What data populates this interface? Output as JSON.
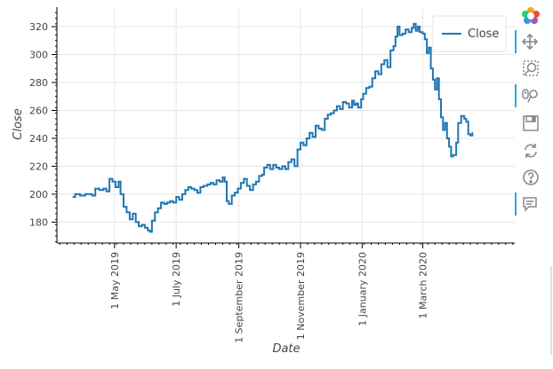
{
  "chart_data": {
    "type": "line",
    "xlabel": "Date",
    "ylabel": "Close",
    "x_range": [
      "2019-03-05",
      "2020-05-31"
    ],
    "ylim": [
      165,
      334
    ],
    "y_ticks": [
      180,
      200,
      220,
      240,
      260,
      280,
      300,
      320
    ],
    "x_ticks": [
      {
        "date": "2019-05-01",
        "label": "1 May 2019"
      },
      {
        "date": "2019-07-01",
        "label": "1 July 2019"
      },
      {
        "date": "2019-09-01",
        "label": "1 September 2019"
      },
      {
        "date": "2019-11-01",
        "label": "1 November 2019"
      },
      {
        "date": "2020-01-01",
        "label": "1 January 2020"
      },
      {
        "date": "2020-03-01",
        "label": "1 March 2020"
      }
    ],
    "grid": true,
    "legend": {
      "position": "top-right",
      "entries": [
        "Close"
      ]
    },
    "series": [
      {
        "name": "Close",
        "color": "#1f77b4",
        "points": [
          [
            "2019-03-21",
            198
          ],
          [
            "2019-03-23",
            200
          ],
          [
            "2019-03-28",
            199
          ],
          [
            "2019-04-02",
            200
          ],
          [
            "2019-04-06",
            200
          ],
          [
            "2019-04-09",
            199
          ],
          [
            "2019-04-12",
            204
          ],
          [
            "2019-04-16",
            203
          ],
          [
            "2019-04-20",
            204
          ],
          [
            "2019-04-23",
            202
          ],
          [
            "2019-04-26",
            211
          ],
          [
            "2019-04-29",
            209
          ],
          [
            "2019-05-02",
            205
          ],
          [
            "2019-05-05",
            209
          ],
          [
            "2019-05-07",
            200
          ],
          [
            "2019-05-10",
            191
          ],
          [
            "2019-05-13",
            187
          ],
          [
            "2019-05-16",
            182
          ],
          [
            "2019-05-19",
            186
          ],
          [
            "2019-05-22",
            180
          ],
          [
            "2019-05-25",
            177
          ],
          [
            "2019-05-28",
            178
          ],
          [
            "2019-05-31",
            176
          ],
          [
            "2019-06-03",
            174
          ],
          [
            "2019-06-05",
            173
          ],
          [
            "2019-06-07",
            181
          ],
          [
            "2019-06-10",
            187
          ],
          [
            "2019-06-13",
            190
          ],
          [
            "2019-06-16",
            194
          ],
          [
            "2019-06-19",
            193
          ],
          [
            "2019-06-22",
            194
          ],
          [
            "2019-06-25",
            195
          ],
          [
            "2019-06-28",
            194
          ],
          [
            "2019-07-01",
            198
          ],
          [
            "2019-07-04",
            196
          ],
          [
            "2019-07-07",
            200
          ],
          [
            "2019-07-10",
            203
          ],
          [
            "2019-07-13",
            205
          ],
          [
            "2019-07-16",
            204
          ],
          [
            "2019-07-19",
            203
          ],
          [
            "2019-07-22",
            201
          ],
          [
            "2019-07-25",
            205
          ],
          [
            "2019-07-28",
            206
          ],
          [
            "2019-08-01",
            207
          ],
          [
            "2019-08-04",
            208
          ],
          [
            "2019-08-07",
            207
          ],
          [
            "2019-08-10",
            210
          ],
          [
            "2019-08-13",
            209
          ],
          [
            "2019-08-16",
            212
          ],
          [
            "2019-08-18",
            209
          ],
          [
            "2019-08-20",
            195
          ],
          [
            "2019-08-22",
            193
          ],
          [
            "2019-08-25",
            199
          ],
          [
            "2019-08-28",
            201
          ],
          [
            "2019-08-31",
            204
          ],
          [
            "2019-09-03",
            208
          ],
          [
            "2019-09-06",
            211
          ],
          [
            "2019-09-09",
            206
          ],
          [
            "2019-09-12",
            203
          ],
          [
            "2019-09-15",
            207
          ],
          [
            "2019-09-18",
            209
          ],
          [
            "2019-09-21",
            213
          ],
          [
            "2019-09-24",
            214
          ],
          [
            "2019-09-26",
            219
          ],
          [
            "2019-09-29",
            221
          ],
          [
            "2019-10-02",
            218
          ],
          [
            "2019-10-05",
            221
          ],
          [
            "2019-10-08",
            219
          ],
          [
            "2019-10-11",
            218
          ],
          [
            "2019-10-14",
            220
          ],
          [
            "2019-10-17",
            218
          ],
          [
            "2019-10-20",
            223
          ],
          [
            "2019-10-23",
            225
          ],
          [
            "2019-10-26",
            220
          ],
          [
            "2019-10-29",
            232
          ],
          [
            "2019-11-01",
            237
          ],
          [
            "2019-11-04",
            235
          ],
          [
            "2019-11-07",
            240
          ],
          [
            "2019-11-10",
            244
          ],
          [
            "2019-11-13",
            241
          ],
          [
            "2019-11-16",
            249
          ],
          [
            "2019-11-19",
            247
          ],
          [
            "2019-11-22",
            246
          ],
          [
            "2019-11-25",
            254
          ],
          [
            "2019-11-28",
            257
          ],
          [
            "2019-12-01",
            258
          ],
          [
            "2019-12-04",
            260
          ],
          [
            "2019-12-07",
            263
          ],
          [
            "2019-12-10",
            261
          ],
          [
            "2019-12-13",
            266
          ],
          [
            "2019-12-16",
            265
          ],
          [
            "2019-12-19",
            262
          ],
          [
            "2019-12-22",
            267
          ],
          [
            "2019-12-24",
            264
          ],
          [
            "2019-12-26",
            265
          ],
          [
            "2019-12-28",
            262
          ],
          [
            "2019-12-31",
            268
          ],
          [
            "2020-01-02",
            272
          ],
          [
            "2020-01-05",
            276
          ],
          [
            "2020-01-08",
            277
          ],
          [
            "2020-01-11",
            283
          ],
          [
            "2020-01-14",
            288
          ],
          [
            "2020-01-17",
            286
          ],
          [
            "2020-01-20",
            293
          ],
          [
            "2020-01-23",
            296
          ],
          [
            "2020-01-26",
            291
          ],
          [
            "2020-01-29",
            303
          ],
          [
            "2020-02-01",
            306
          ],
          [
            "2020-02-03",
            313
          ],
          [
            "2020-02-05",
            320
          ],
          [
            "2020-02-07",
            314
          ],
          [
            "2020-02-10",
            315
          ],
          [
            "2020-02-13",
            318
          ],
          [
            "2020-02-16",
            316
          ],
          [
            "2020-02-19",
            319
          ],
          [
            "2020-02-21",
            322
          ],
          [
            "2020-02-23",
            317
          ],
          [
            "2020-02-25",
            320
          ],
          [
            "2020-02-27",
            316
          ],
          [
            "2020-03-01",
            315
          ],
          [
            "2020-03-03",
            311
          ],
          [
            "2020-03-05",
            301
          ],
          [
            "2020-03-07",
            305
          ],
          [
            "2020-03-09",
            290
          ],
          [
            "2020-03-11",
            282
          ],
          [
            "2020-03-13",
            275
          ],
          [
            "2020-03-15",
            283
          ],
          [
            "2020-03-17",
            268
          ],
          [
            "2020-03-19",
            255
          ],
          [
            "2020-03-21",
            246
          ],
          [
            "2020-03-23",
            251
          ],
          [
            "2020-03-25",
            240
          ],
          [
            "2020-03-27",
            234
          ],
          [
            "2020-03-29",
            227
          ],
          [
            "2020-03-31",
            228
          ],
          [
            "2020-04-03",
            237
          ],
          [
            "2020-04-05",
            251
          ],
          [
            "2020-04-08",
            256
          ],
          [
            "2020-04-11",
            254
          ],
          [
            "2020-04-13",
            252
          ],
          [
            "2020-04-15",
            243
          ],
          [
            "2020-04-17",
            242
          ],
          [
            "2020-04-19",
            244
          ]
        ]
      }
    ]
  },
  "toolbar": [
    {
      "name": "bokeh-logo-icon",
      "active": false
    },
    {
      "name": "pan-tool-icon",
      "active": true
    },
    {
      "name": "box-zoom-tool-icon",
      "active": false
    },
    {
      "name": "wheel-zoom-tool-icon",
      "active": true
    },
    {
      "name": "save-tool-icon",
      "active": false
    },
    {
      "name": "reset-tool-icon",
      "active": false
    },
    {
      "name": "help-tool-icon",
      "active": false
    },
    {
      "name": "hover-tool-icon",
      "active": true
    }
  ]
}
